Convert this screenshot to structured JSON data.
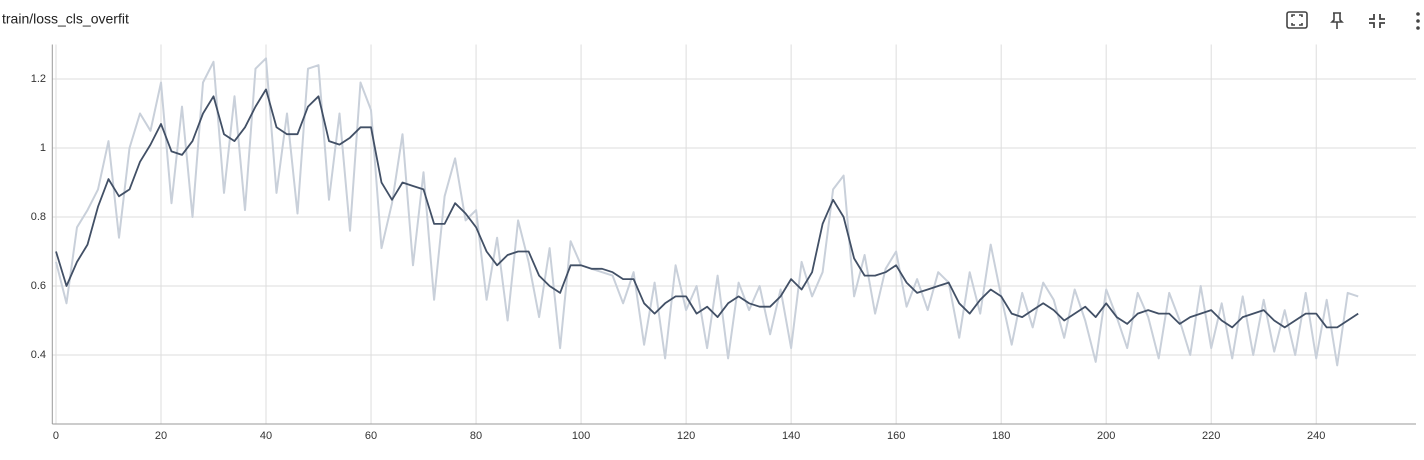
{
  "chart_data": {
    "type": "line",
    "title": "train/loss_cls_overfit",
    "x": [
      0,
      2,
      4,
      6,
      8,
      10,
      12,
      14,
      16,
      18,
      20,
      22,
      24,
      26,
      28,
      30,
      32,
      34,
      36,
      38,
      40,
      42,
      44,
      46,
      48,
      50,
      52,
      54,
      56,
      58,
      60,
      62,
      64,
      66,
      68,
      70,
      72,
      74,
      76,
      78,
      80,
      82,
      84,
      86,
      88,
      90,
      92,
      94,
      96,
      98,
      100,
      102,
      104,
      106,
      108,
      110,
      112,
      114,
      116,
      118,
      120,
      122,
      124,
      126,
      128,
      130,
      132,
      134,
      136,
      138,
      140,
      142,
      144,
      146,
      148,
      150,
      152,
      154,
      156,
      158,
      160,
      162,
      164,
      166,
      168,
      170,
      172,
      174,
      176,
      178,
      180,
      182,
      184,
      186,
      188,
      190,
      192,
      194,
      196,
      198,
      200,
      202,
      204,
      206,
      208,
      210,
      212,
      214,
      216,
      218,
      220,
      222,
      224,
      226,
      228,
      230,
      232,
      234,
      236,
      238,
      240,
      242,
      244,
      246,
      248
    ],
    "series": [
      {
        "color": "#c9d0da",
        "values": [
          0.67,
          0.55,
          0.77,
          0.82,
          0.88,
          1.02,
          0.74,
          1.0,
          1.1,
          1.05,
          1.19,
          0.84,
          1.12,
          0.8,
          1.19,
          1.25,
          0.87,
          1.15,
          0.82,
          1.23,
          1.26,
          0.87,
          1.1,
          0.81,
          1.23,
          1.24,
          0.85,
          1.1,
          0.76,
          1.19,
          1.11,
          0.71,
          0.84,
          1.04,
          0.66,
          0.93,
          0.56,
          0.86,
          0.97,
          0.79,
          0.82,
          0.56,
          0.74,
          0.5,
          0.79,
          0.67,
          0.51,
          0.71,
          0.42,
          0.73,
          0.66,
          0.65,
          0.64,
          0.63,
          0.55,
          0.64,
          0.43,
          0.61,
          0.39,
          0.66,
          0.53,
          0.6,
          0.42,
          0.63,
          0.39,
          0.61,
          0.53,
          0.6,
          0.46,
          0.59,
          0.42,
          0.67,
          0.57,
          0.64,
          0.88,
          0.92,
          0.57,
          0.69,
          0.52,
          0.65,
          0.7,
          0.54,
          0.62,
          0.53,
          0.64,
          0.61,
          0.45,
          0.64,
          0.52,
          0.72,
          0.57,
          0.43,
          0.58,
          0.48,
          0.61,
          0.56,
          0.45,
          0.59,
          0.5,
          0.38,
          0.59,
          0.51,
          0.42,
          0.58,
          0.51,
          0.39,
          0.58,
          0.5,
          0.4,
          0.6,
          0.42,
          0.55,
          0.39,
          0.57,
          0.4,
          0.56,
          0.41,
          0.53,
          0.4,
          0.58,
          0.39,
          0.56,
          0.37,
          0.58,
          0.57
        ]
      },
      {
        "color": "#425066",
        "values": [
          0.7,
          0.6,
          0.67,
          0.72,
          0.83,
          0.91,
          0.86,
          0.88,
          0.96,
          1.01,
          1.07,
          0.99,
          0.98,
          1.02,
          1.1,
          1.15,
          1.04,
          1.02,
          1.06,
          1.12,
          1.17,
          1.06,
          1.04,
          1.04,
          1.12,
          1.15,
          1.02,
          1.01,
          1.03,
          1.06,
          1.06,
          0.9,
          0.85,
          0.9,
          0.89,
          0.88,
          0.78,
          0.78,
          0.84,
          0.81,
          0.77,
          0.7,
          0.66,
          0.69,
          0.7,
          0.7,
          0.63,
          0.6,
          0.58,
          0.66,
          0.66,
          0.65,
          0.65,
          0.64,
          0.62,
          0.62,
          0.55,
          0.52,
          0.55,
          0.57,
          0.57,
          0.52,
          0.54,
          0.51,
          0.55,
          0.57,
          0.55,
          0.54,
          0.54,
          0.57,
          0.62,
          0.59,
          0.64,
          0.78,
          0.85,
          0.8,
          0.68,
          0.63,
          0.63,
          0.64,
          0.66,
          0.61,
          0.58,
          0.59,
          0.6,
          0.61,
          0.55,
          0.52,
          0.56,
          0.59,
          0.57,
          0.52,
          0.51,
          0.53,
          0.55,
          0.53,
          0.5,
          0.52,
          0.54,
          0.51,
          0.55,
          0.51,
          0.49,
          0.52,
          0.53,
          0.52,
          0.52,
          0.49,
          0.51,
          0.52,
          0.53,
          0.5,
          0.48,
          0.51,
          0.52,
          0.53,
          0.5,
          0.48,
          0.5,
          0.52,
          0.52,
          0.48,
          0.48,
          0.5,
          0.52
        ]
      }
    ],
    "xlim": [
      -0.7,
      259
    ],
    "xticks": [
      0,
      20,
      40,
      60,
      80,
      100,
      120,
      140,
      160,
      180,
      200,
      220,
      240
    ],
    "ylim": [
      0.2,
      1.3
    ],
    "yticks": [
      0.4,
      0.6,
      0.8,
      1,
      1.2
    ],
    "grid": true
  }
}
